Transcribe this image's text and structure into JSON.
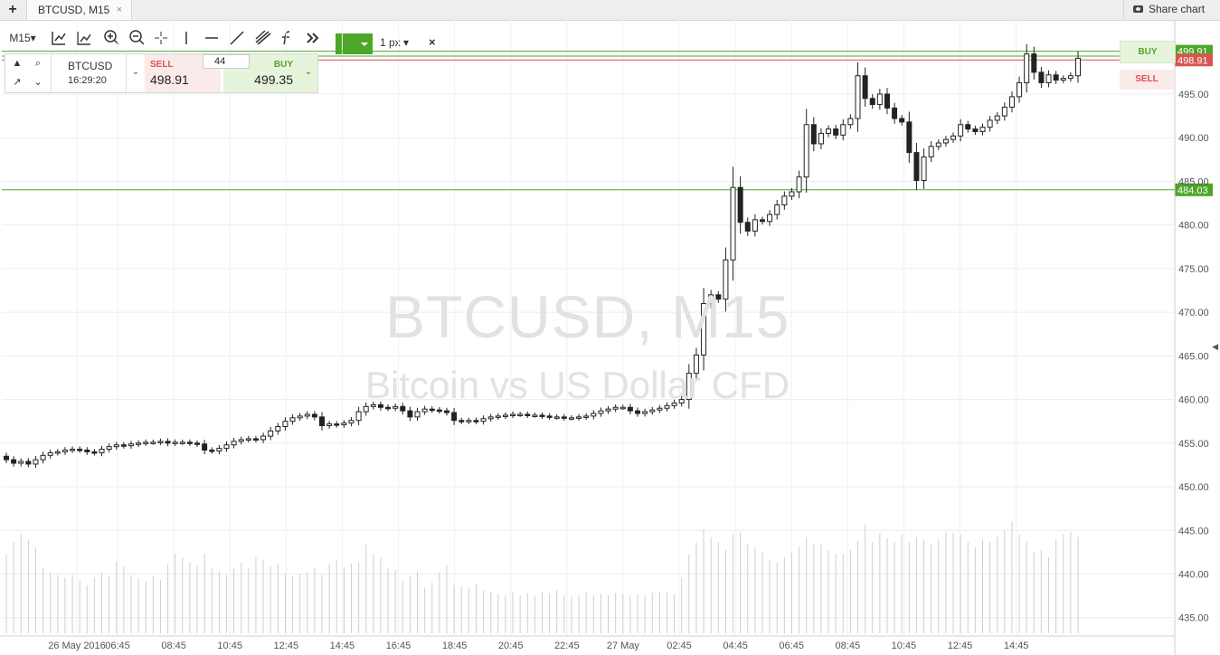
{
  "topbar": {
    "add_tab": "+",
    "tab_label": "BTCUSD, M15",
    "tab_close": "×",
    "share_label": "Share chart"
  },
  "toolbar": {
    "timeframe": "M15",
    "line_width": "1 px",
    "color": "#4ca729",
    "close": "×",
    "tools": [
      "indicators-icon",
      "studies-icon",
      "zoom-in-icon",
      "zoom-out-icon",
      "crosshair-icon",
      "vertical-line-icon",
      "horizontal-line-icon",
      "trend-line-icon",
      "pitchfork-icon",
      "fibonacci-icon",
      "more-icon"
    ]
  },
  "trade_panel": {
    "symbol": "BTCUSD",
    "time": "16:29:20",
    "quantity": "44",
    "sell_label": "SELL",
    "sell_price": "498.91",
    "buy_label": "BUY",
    "buy_price": "499.35"
  },
  "watermark": {
    "title": "BTCUSD, M15",
    "subtitle": "Bitcoin vs US Dollar CFD"
  },
  "tags": {
    "buy": "BUY",
    "sell": "SELL"
  },
  "chart_data": {
    "type": "candlestick",
    "ylim": [
      433,
      503.5
    ],
    "y_ticks": [
      "495.00",
      "490.00",
      "485.00",
      "480.00",
      "475.00",
      "470.00",
      "465.00",
      "460.00",
      "455.00",
      "450.00",
      "445.00",
      "440.00",
      "435.00"
    ],
    "x_ticks": [
      "26 May 2016",
      "06:45",
      "08:45",
      "10:45",
      "12:45",
      "14:45",
      "16:45",
      "18:45",
      "20:45",
      "22:45",
      "27 May",
      "02:45",
      "04:45",
      "06:45",
      "08:45",
      "10:45",
      "12:45",
      "14:45"
    ],
    "price_labels": [
      {
        "value": 499.91,
        "text": "499.91",
        "color": "#4ca729"
      },
      {
        "value": 498.91,
        "text": "498.91",
        "color": "#d9534f"
      },
      {
        "value": 484.03,
        "text": "484.03",
        "color": "#4ca729"
      }
    ],
    "horizontal_lines": [
      {
        "value": 499.91,
        "color": "#4ca729"
      },
      {
        "value": 499.35,
        "color": "#4ca729"
      },
      {
        "value": 498.91,
        "color": "#d9534f"
      },
      {
        "value": 484.03,
        "color": "#4ca729"
      }
    ],
    "closes": [
      453.1,
      452.7,
      452.9,
      452.6,
      453.1,
      453.6,
      453.9,
      454.0,
      454.2,
      454.3,
      454.2,
      454.0,
      453.9,
      454.3,
      454.6,
      454.8,
      454.7,
      454.9,
      455.0,
      455.1,
      455.1,
      455.2,
      455.0,
      455.1,
      455.1,
      455.0,
      454.9,
      454.2,
      454.1,
      454.4,
      454.8,
      455.2,
      455.4,
      455.5,
      455.4,
      455.8,
      456.4,
      456.9,
      457.5,
      457.9,
      458.1,
      458.3,
      458.0,
      457.0,
      457.2,
      457.1,
      457.3,
      457.6,
      458.6,
      459.2,
      459.4,
      459.1,
      459.0,
      459.2,
      458.7,
      458.0,
      458.6,
      458.9,
      458.8,
      458.7,
      458.5,
      457.6,
      457.5,
      457.6,
      457.5,
      457.8,
      458.0,
      458.1,
      458.2,
      458.3,
      458.3,
      458.2,
      458.2,
      458.1,
      458.0,
      458.0,
      457.9,
      457.9,
      458.0,
      458.1,
      458.4,
      458.7,
      458.9,
      459.1,
      459.1,
      458.7,
      458.4,
      458.6,
      458.8,
      459.0,
      459.3,
      459.6,
      460.0,
      463.0,
      465.1,
      471.0,
      472.0,
      471.5,
      476.0,
      484.3,
      480.3,
      479.3,
      480.6,
      480.4,
      481.2,
      482.3,
      483.3,
      483.8,
      485.5,
      491.5,
      489.3,
      490.5,
      491.0,
      490.3,
      491.5,
      492.2,
      497.1,
      494.5,
      493.8,
      495.0,
      493.4,
      492.2,
      491.8,
      488.3,
      485.1,
      487.8,
      489.0,
      489.4,
      489.8,
      490.2,
      491.5,
      491.0,
      490.7,
      491.2,
      492.0,
      492.5,
      493.5,
      494.7,
      496.3,
      499.6,
      497.5,
      496.3,
      497.2,
      496.6,
      496.8,
      497.1,
      499.1
    ],
    "volumes": [
      0.62,
      0.72,
      0.78,
      0.74,
      0.68,
      0.52,
      0.48,
      0.46,
      0.44,
      0.46,
      0.42,
      0.38,
      0.44,
      0.48,
      0.45,
      0.56,
      0.53,
      0.46,
      0.43,
      0.41,
      0.45,
      0.42,
      0.55,
      0.63,
      0.6,
      0.56,
      0.53,
      0.63,
      0.51,
      0.49,
      0.46,
      0.51,
      0.56,
      0.51,
      0.6,
      0.58,
      0.53,
      0.55,
      0.47,
      0.45,
      0.47,
      0.48,
      0.52,
      0.46,
      0.55,
      0.58,
      0.52,
      0.55,
      0.56,
      0.7,
      0.63,
      0.6,
      0.51,
      0.5,
      0.42,
      0.45,
      0.49,
      0.36,
      0.4,
      0.48,
      0.54,
      0.38,
      0.37,
      0.36,
      0.39,
      0.34,
      0.33,
      0.31,
      0.3,
      0.33,
      0.3,
      0.32,
      0.3,
      0.33,
      0.31,
      0.34,
      0.3,
      0.29,
      0.3,
      0.32,
      0.3,
      0.31,
      0.3,
      0.32,
      0.31,
      0.3,
      0.31,
      0.3,
      0.32,
      0.33,
      0.32,
      0.31,
      0.44,
      0.62,
      0.72,
      0.82,
      0.76,
      0.72,
      0.66,
      0.78,
      0.8,
      0.7,
      0.68,
      0.64,
      0.58,
      0.56,
      0.6,
      0.64,
      0.68,
      0.76,
      0.7,
      0.7,
      0.66,
      0.63,
      0.63,
      0.66,
      0.73,
      0.86,
      0.72,
      0.79,
      0.75,
      0.72,
      0.78,
      0.72,
      0.76,
      0.74,
      0.7,
      0.74,
      0.8,
      0.79,
      0.78,
      0.72,
      0.68,
      0.74,
      0.72,
      0.76,
      0.81,
      0.88,
      0.78,
      0.72,
      0.64,
      0.66,
      0.6,
      0.74,
      0.78,
      0.8,
      0.76
    ]
  }
}
